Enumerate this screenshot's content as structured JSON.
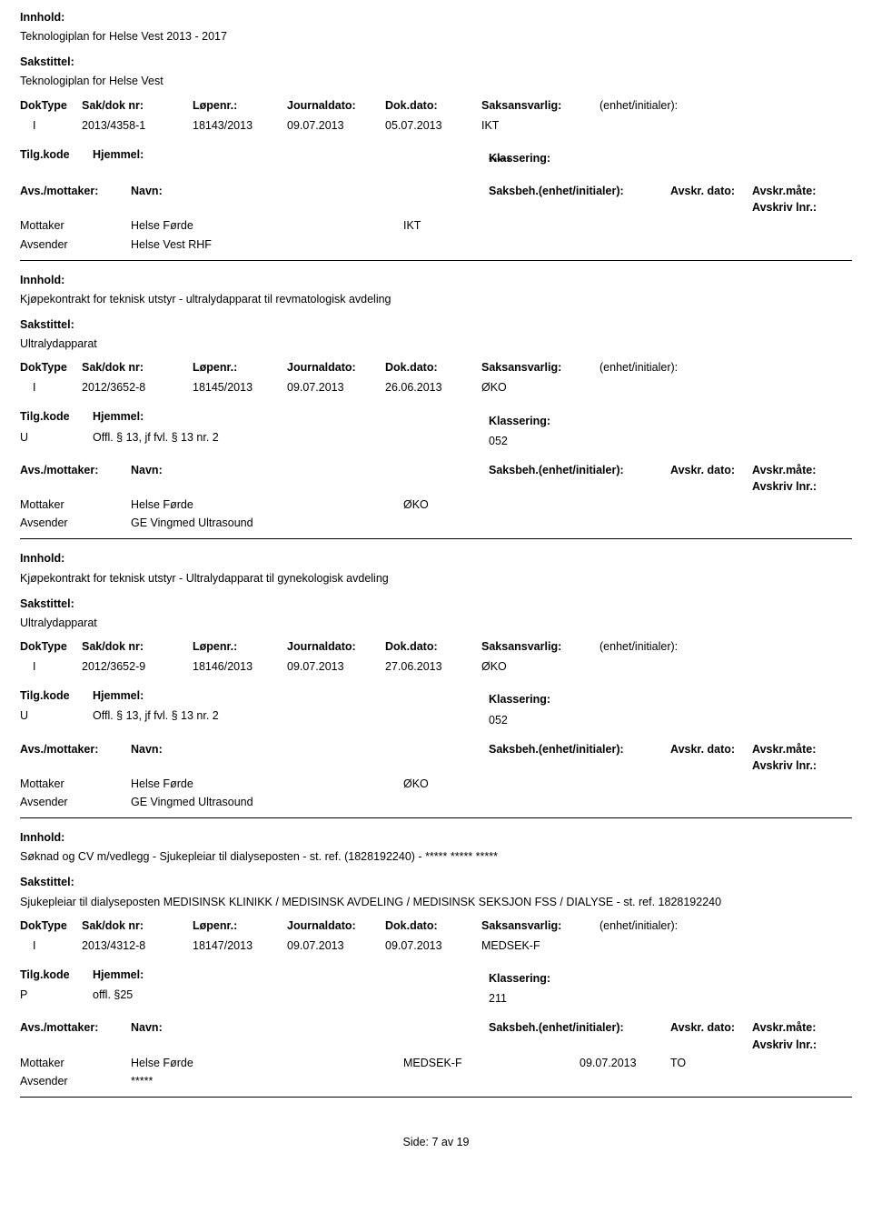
{
  "labels": {
    "innhold": "Innhold:",
    "sakstittel": "Sakstittel:",
    "doktype": "DokType",
    "sakdok": "Sak/dok nr:",
    "lopenr": "Løpenr.:",
    "journaldato": "Journaldato:",
    "dokdato": "Dok.dato:",
    "saksansvarlig": "Saksansvarlig:",
    "enhet": "(enhet/initialer):",
    "tilgkode": "Tilg.kode",
    "hjemmel": "Hjemmel:",
    "klassering": "Klassering:",
    "avsmottaker": "Avs./mottaker:",
    "navn": "Navn:",
    "saksbeh": "Saksbeh.(enhet/initialer):",
    "avskrdato": "Avskr. dato:",
    "avskrmate": "Avskr.måte:",
    "avskrivlnr": "Avskriv lnr.:",
    "mottaker": "Mottaker",
    "avsender": "Avsender"
  },
  "items": [
    {
      "innhold": "Teknologiplan for Helse Vest 2013 - 2017",
      "sakstittel": "Teknologiplan for Helse Vest",
      "doktype": "I",
      "sakdok": "2013/4358-1",
      "lopenr": "18143/2013",
      "journaldato": "09.07.2013",
      "dokdato": "05.07.2013",
      "saksansvarlig": "IKT",
      "enhet": "",
      "tilgkode": "",
      "hjemmel": "",
      "klassering": "*****",
      "rows": [
        {
          "role": "Mottaker",
          "navn": "Helse Førde",
          "saksbeh": "IKT",
          "avskrdato": "",
          "avskrmate": "",
          "avskrivlnr": ""
        },
        {
          "role": "Avsender",
          "navn": "Helse Vest RHF",
          "saksbeh": "",
          "avskrdato": "",
          "avskrmate": "",
          "avskrivlnr": ""
        }
      ]
    },
    {
      "innhold": "Kjøpekontrakt for teknisk utstyr - ultralydapparat til revmatologisk avdeling",
      "sakstittel": "Ultralydapparat",
      "doktype": "I",
      "sakdok": "2012/3652-8",
      "lopenr": "18145/2013",
      "journaldato": "09.07.2013",
      "dokdato": "26.06.2013",
      "saksansvarlig": "ØKO",
      "enhet": "",
      "tilgkode": "U",
      "hjemmel": "Offl. § 13, jf fvl. § 13 nr. 2",
      "klassering": "052",
      "rows": [
        {
          "role": "Mottaker",
          "navn": "Helse Førde",
          "saksbeh": "ØKO",
          "avskrdato": "",
          "avskrmate": "",
          "avskrivlnr": ""
        },
        {
          "role": "Avsender",
          "navn": "GE Vingmed Ultrasound",
          "saksbeh": "",
          "avskrdato": "",
          "avskrmate": "",
          "avskrivlnr": ""
        }
      ]
    },
    {
      "innhold": "Kjøpekontrakt for teknisk utstyr - Ultralydapparat til gynekologisk avdeling",
      "sakstittel": "Ultralydapparat",
      "doktype": "I",
      "sakdok": "2012/3652-9",
      "lopenr": "18146/2013",
      "journaldato": "09.07.2013",
      "dokdato": "27.06.2013",
      "saksansvarlig": "ØKO",
      "enhet": "",
      "tilgkode": "U",
      "hjemmel": "Offl. § 13, jf fvl. § 13 nr. 2",
      "klassering": "052",
      "rows": [
        {
          "role": "Mottaker",
          "navn": "Helse Førde",
          "saksbeh": "ØKO",
          "avskrdato": "",
          "avskrmate": "",
          "avskrivlnr": ""
        },
        {
          "role": "Avsender",
          "navn": "GE Vingmed Ultrasound",
          "saksbeh": "",
          "avskrdato": "",
          "avskrmate": "",
          "avskrivlnr": ""
        }
      ]
    },
    {
      "innhold": "Søknad og CV m/vedlegg - Sjukepleiar til dialyseposten - st. ref. (1828192240) - ***** ***** *****",
      "sakstittel": "Sjukepleiar til dialyseposten MEDISINSK KLINIKK / MEDISINSK AVDELING / MEDISINSK SEKSJON FSS / DIALYSE - st. ref. 1828192240",
      "doktype": "I",
      "sakdok": "2013/4312-8",
      "lopenr": "18147/2013",
      "journaldato": "09.07.2013",
      "dokdato": "09.07.2013",
      "saksansvarlig": "MEDSEK-F",
      "enhet": "",
      "tilgkode": "P",
      "hjemmel": "offl. §25",
      "klassering": "211",
      "rows": [
        {
          "role": "Mottaker",
          "navn": "Helse Førde",
          "saksbeh": "MEDSEK-F",
          "avskrdato": "09.07.2013",
          "avskrmate": "TO",
          "avskrivlnr": ""
        },
        {
          "role": "Avsender",
          "navn": "*****",
          "saksbeh": "",
          "avskrdato": "",
          "avskrmate": "",
          "avskrivlnr": ""
        }
      ]
    }
  ],
  "footer": "Side: 7 av 19"
}
